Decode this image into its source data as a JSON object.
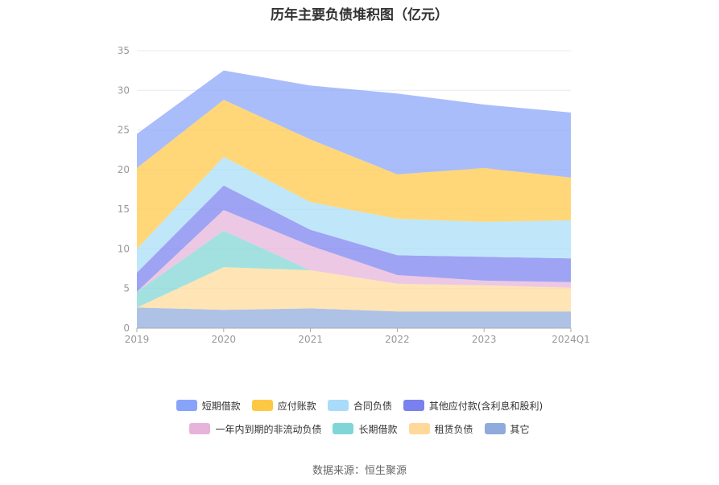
{
  "chart_data": {
    "type": "area",
    "stacked": true,
    "title": "历年主要负债堆积图（亿元）",
    "categories": [
      "2019",
      "2020",
      "2021",
      "2022",
      "2023",
      "2024Q1"
    ],
    "ylim": [
      0,
      35
    ],
    "yticks": [
      0,
      5,
      10,
      15,
      20,
      25,
      30,
      35
    ],
    "grid": true,
    "legend_position": "bottom",
    "series": [
      {
        "name": "其它",
        "color": "#8faadc",
        "values": [
          2.6,
          2.3,
          2.5,
          2.1,
          2.1,
          2.1
        ]
      },
      {
        "name": "租赁负债",
        "color": "#ffd999",
        "values": [
          0.0,
          5.4,
          4.8,
          3.5,
          3.3,
          3.0
        ]
      },
      {
        "name": "长期借款",
        "color": "#80d6d6",
        "values": [
          2.0,
          4.6,
          0.0,
          0.0,
          0.0,
          0.0
        ]
      },
      {
        "name": "一年内到期的非流动负债",
        "color": "#e6b3d9",
        "values": [
          0.0,
          2.6,
          3.1,
          1.1,
          0.6,
          0.7
        ]
      },
      {
        "name": "其他应付款(含利息和股利)",
        "color": "#7a80ee",
        "values": [
          2.4,
          3.1,
          2.0,
          2.5,
          3.0,
          3.0
        ]
      },
      {
        "name": "合同负债",
        "color": "#a8dcf8",
        "values": [
          3.0,
          3.6,
          3.5,
          4.6,
          4.4,
          4.8
        ]
      },
      {
        "name": "应付账款",
        "color": "#ffc844",
        "values": [
          10.2,
          7.2,
          7.9,
          5.6,
          6.8,
          5.4
        ]
      },
      {
        "name": "短期借款",
        "color": "#88a4fa",
        "values": [
          4.3,
          3.7,
          6.8,
          10.2,
          8.0,
          8.2
        ]
      }
    ]
  },
  "legend": {
    "row1": [
      "短期借款",
      "应付账款",
      "合同负债",
      "其他应付款(含利息和股利)"
    ],
    "row2": [
      "一年内到期的非流动负债",
      "长期借款",
      "租赁负债",
      "其它"
    ]
  },
  "source": "数据来源：恒生聚源"
}
